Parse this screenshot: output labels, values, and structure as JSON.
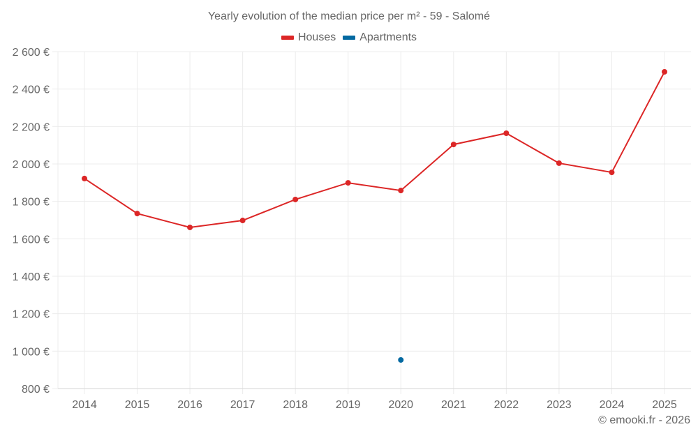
{
  "chart_data": {
    "type": "line",
    "title": "Yearly evolution of the median price per m² - 59 - Salomé",
    "xlabel": "",
    "ylabel": "",
    "categories": [
      "2014",
      "2015",
      "2016",
      "2017",
      "2018",
      "2019",
      "2020",
      "2021",
      "2022",
      "2023",
      "2024",
      "2025"
    ],
    "series": [
      {
        "name": "Houses",
        "color": "#dc2626",
        "values": [
          1922,
          1735,
          1661,
          1698,
          1810,
          1899,
          1858,
          2104,
          2164,
          2004,
          1955,
          2492
        ]
      },
      {
        "name": "Apartments",
        "color": "#0369a1",
        "values": [
          null,
          null,
          null,
          null,
          null,
          null,
          953,
          null,
          null,
          null,
          null,
          null
        ]
      }
    ],
    "ylim": [
      800,
      2600
    ],
    "yticks": [
      800,
      1000,
      1200,
      1400,
      1600,
      1800,
      2000,
      2200,
      2400,
      2600
    ],
    "ytick_labels": [
      "800 €",
      "1 000 €",
      "1 200 €",
      "1 400 €",
      "1 600 €",
      "1 800 €",
      "2 000 €",
      "2 200 €",
      "2 400 €",
      "2 600 €"
    ],
    "grid": true,
    "legend_position": "top"
  },
  "legend": [
    {
      "label": "Houses",
      "color": "#dc2626"
    },
    {
      "label": "Apartments",
      "color": "#0369a1"
    }
  ],
  "footer": "© emooki.fr - 2026"
}
